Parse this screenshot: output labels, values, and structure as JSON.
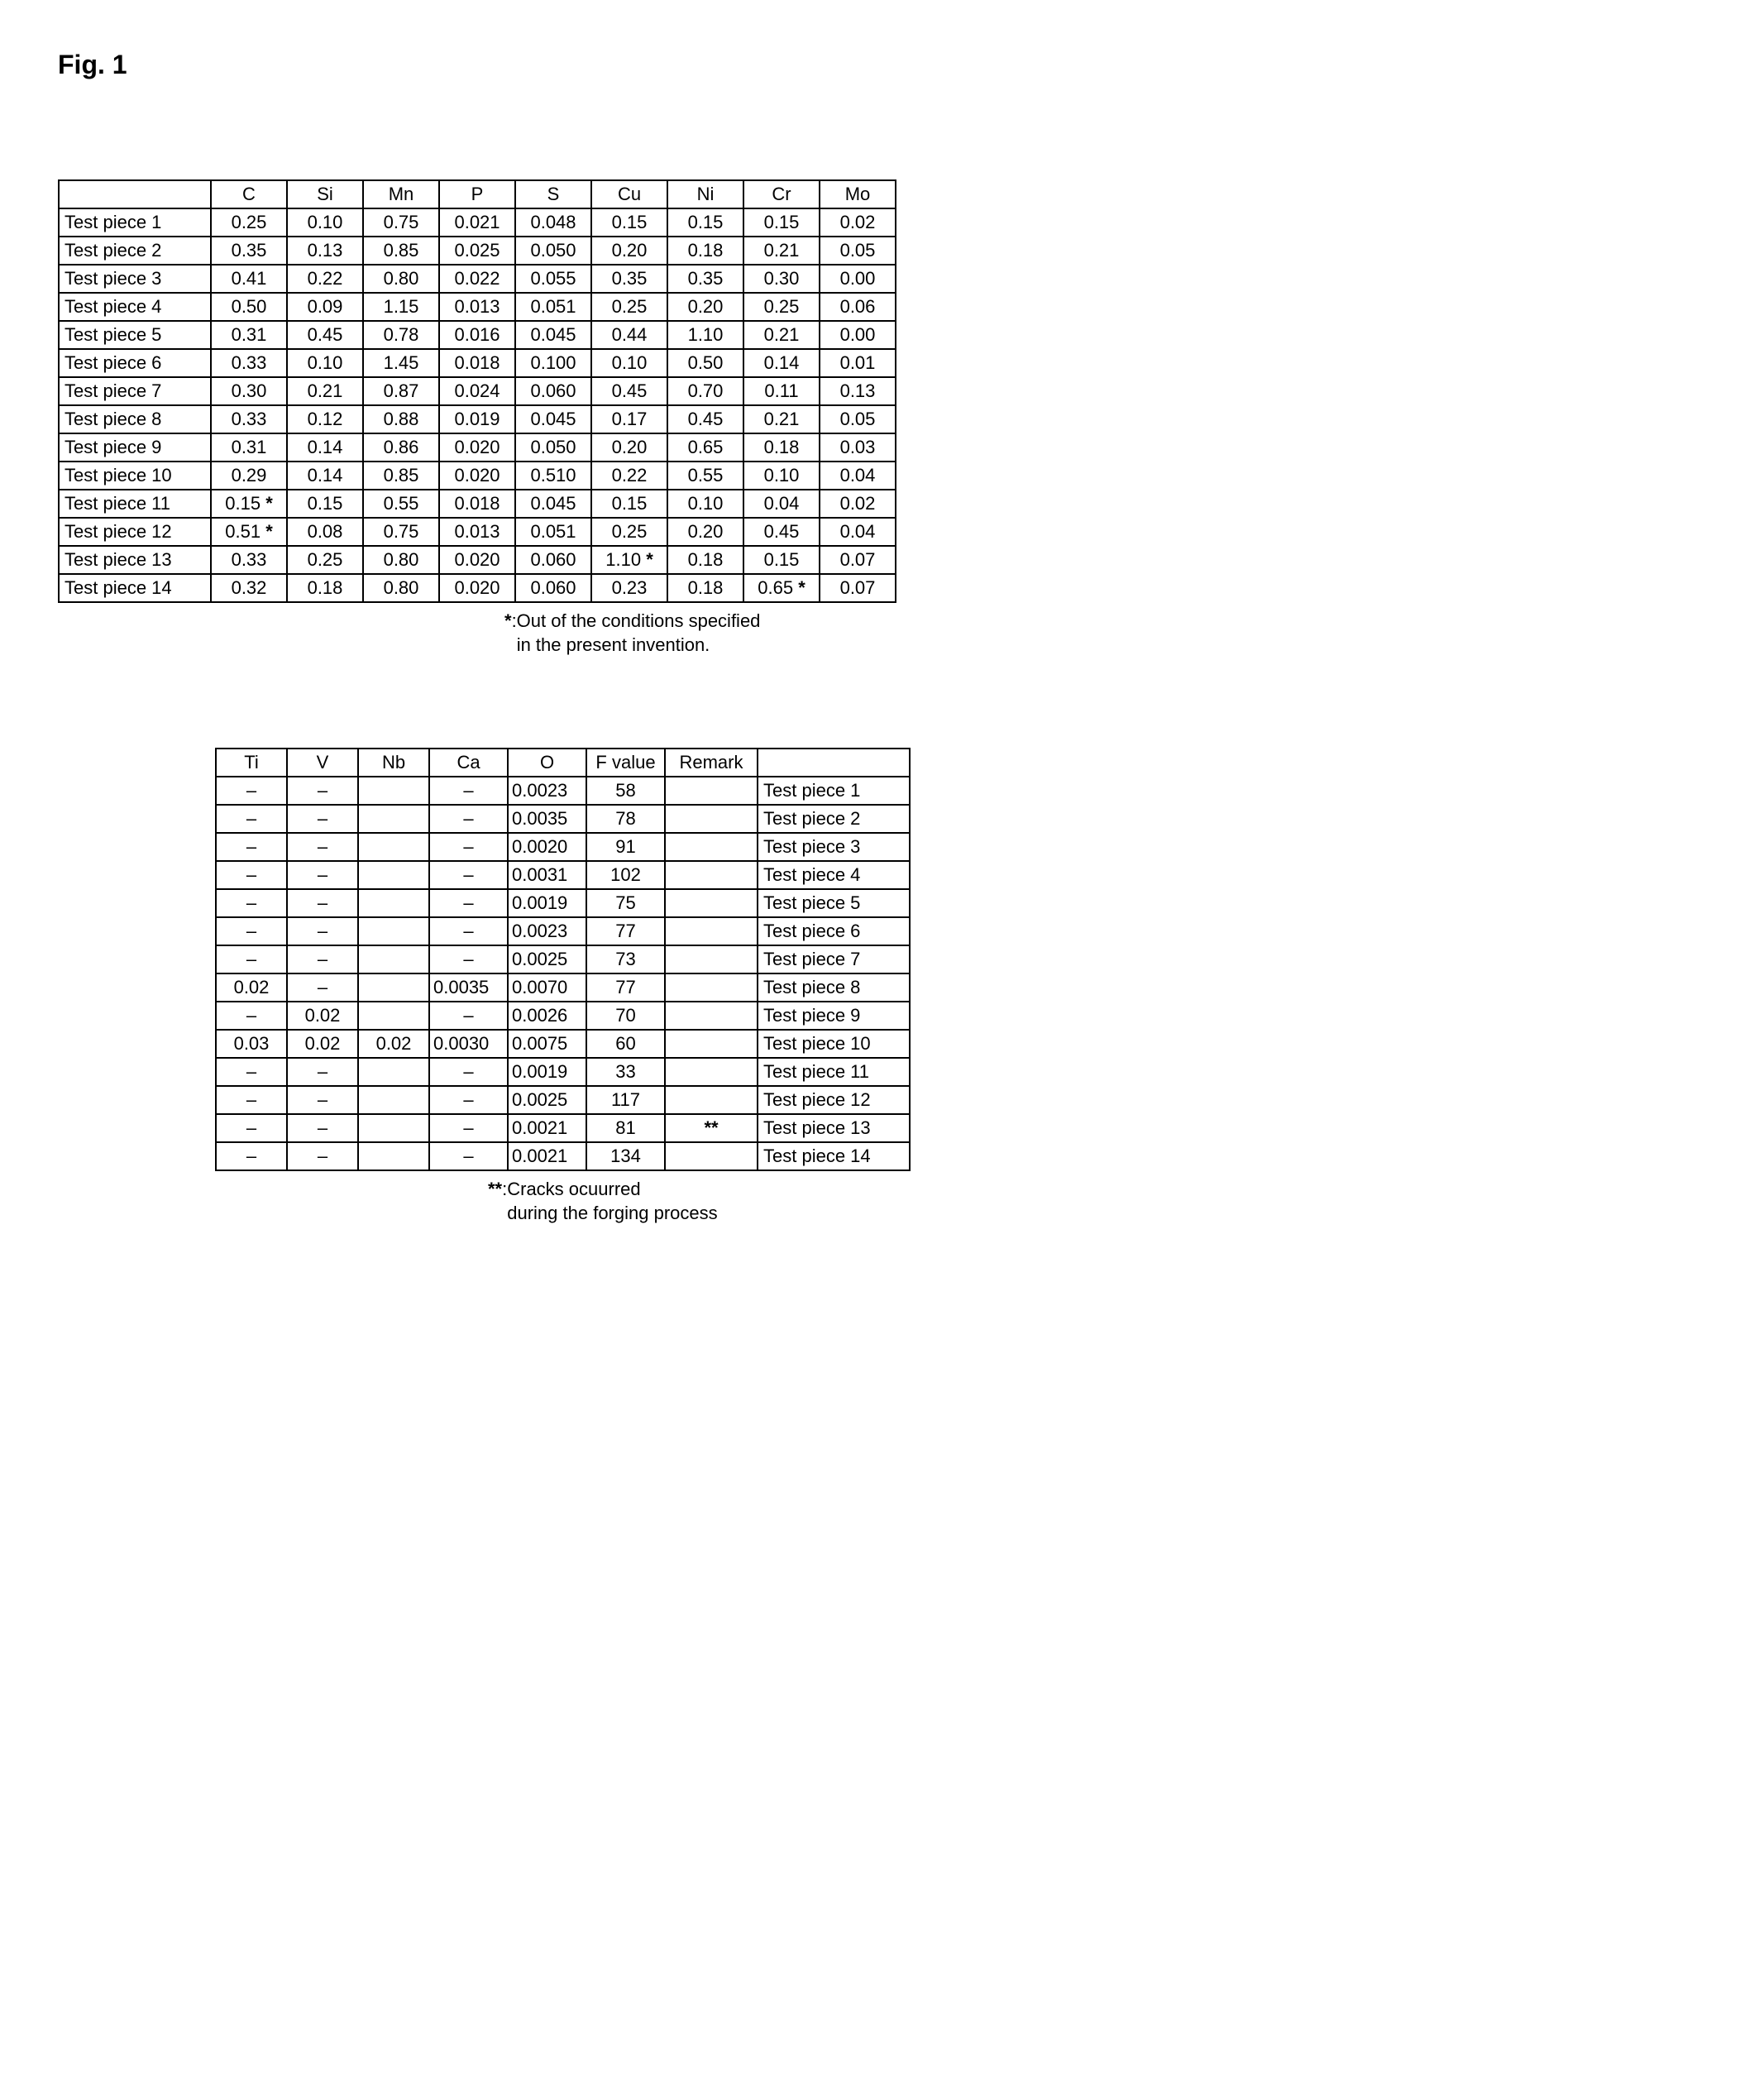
{
  "figure_label": "Fig. 1",
  "table1": {
    "headers": [
      "",
      "C",
      "Si",
      "Mn",
      "P",
      "S",
      "Cu",
      "Ni",
      "Cr",
      "Mo"
    ],
    "rows": [
      {
        "label": "Test piece 1",
        "cells": [
          "0.25",
          "0.10",
          "0.75",
          "0.021",
          "0.048",
          "0.15",
          "0.15",
          "0.15",
          "0.02"
        ],
        "marks": {}
      },
      {
        "label": "Test piece 2",
        "cells": [
          "0.35",
          "0.13",
          "0.85",
          "0.025",
          "0.050",
          "0.20",
          "0.18",
          "0.21",
          "0.05"
        ],
        "marks": {}
      },
      {
        "label": "Test piece 3",
        "cells": [
          "0.41",
          "0.22",
          "0.80",
          "0.022",
          "0.055",
          "0.35",
          "0.35",
          "0.30",
          "0.00"
        ],
        "marks": {}
      },
      {
        "label": "Test piece 4",
        "cells": [
          "0.50",
          "0.09",
          "1.15",
          "0.013",
          "0.051",
          "0.25",
          "0.20",
          "0.25",
          "0.06"
        ],
        "marks": {}
      },
      {
        "label": "Test piece 5",
        "cells": [
          "0.31",
          "0.45",
          "0.78",
          "0.016",
          "0.045",
          "0.44",
          "1.10",
          "0.21",
          "0.00"
        ],
        "marks": {}
      },
      {
        "label": "Test piece 6",
        "cells": [
          "0.33",
          "0.10",
          "1.45",
          "0.018",
          "0.100",
          "0.10",
          "0.50",
          "0.14",
          "0.01"
        ],
        "marks": {}
      },
      {
        "label": "Test piece 7",
        "cells": [
          "0.30",
          "0.21",
          "0.87",
          "0.024",
          "0.060",
          "0.45",
          "0.70",
          "0.11",
          "0.13"
        ],
        "marks": {}
      },
      {
        "label": "Test piece 8",
        "cells": [
          "0.33",
          "0.12",
          "0.88",
          "0.019",
          "0.045",
          "0.17",
          "0.45",
          "0.21",
          "0.05"
        ],
        "marks": {}
      },
      {
        "label": "Test piece 9",
        "cells": [
          "0.31",
          "0.14",
          "0.86",
          "0.020",
          "0.050",
          "0.20",
          "0.65",
          "0.18",
          "0.03"
        ],
        "marks": {}
      },
      {
        "label": "Test piece 10",
        "cells": [
          "0.29",
          "0.14",
          "0.85",
          "0.020",
          "0.510",
          "0.22",
          "0.55",
          "0.10",
          "0.04"
        ],
        "marks": {}
      },
      {
        "label": "Test piece 11",
        "cells": [
          "0.15",
          "0.15",
          "0.55",
          "0.018",
          "0.045",
          "0.15",
          "0.10",
          "0.04",
          "0.02"
        ],
        "marks": {
          "0": "*"
        }
      },
      {
        "label": "Test piece 12",
        "cells": [
          "0.51",
          "0.08",
          "0.75",
          "0.013",
          "0.051",
          "0.25",
          "0.20",
          "0.45",
          "0.04"
        ],
        "marks": {
          "0": "*"
        }
      },
      {
        "label": "Test piece 13",
        "cells": [
          "0.33",
          "0.25",
          "0.80",
          "0.020",
          "0.060",
          "1.10",
          "0.18",
          "0.15",
          "0.07"
        ],
        "marks": {
          "5": "*"
        }
      },
      {
        "label": "Test piece 14",
        "cells": [
          "0.32",
          "0.18",
          "0.80",
          "0.020",
          "0.060",
          "0.23",
          "0.18",
          "0.65",
          "0.07"
        ],
        "marks": {
          "7": "*"
        }
      }
    ],
    "footnote_symbol": "*",
    "footnote_text1": ":Out of the conditions specified",
    "footnote_text2": "in the present invention."
  },
  "table2": {
    "headers": [
      "Ti",
      "V",
      "Nb",
      "Ca",
      "O",
      "F value",
      "Remark",
      ""
    ],
    "rows": [
      {
        "cells": [
          "–",
          "–",
          "",
          "–",
          "0.0023",
          "58",
          ""
        ],
        "piece": "Test piece 1"
      },
      {
        "cells": [
          "–",
          "–",
          "",
          "–",
          "0.0035",
          "78",
          ""
        ],
        "piece": "Test piece 2"
      },
      {
        "cells": [
          "–",
          "–",
          "",
          "–",
          "0.0020",
          "91",
          ""
        ],
        "piece": "Test piece 3"
      },
      {
        "cells": [
          "–",
          "–",
          "",
          "–",
          "0.0031",
          "102",
          ""
        ],
        "piece": "Test piece 4"
      },
      {
        "cells": [
          "–",
          "–",
          "",
          "–",
          "0.0019",
          "75",
          ""
        ],
        "piece": "Test piece 5"
      },
      {
        "cells": [
          "–",
          "–",
          "",
          "–",
          "0.0023",
          "77",
          ""
        ],
        "piece": "Test piece 6"
      },
      {
        "cells": [
          "–",
          "–",
          "",
          "–",
          "0.0025",
          "73",
          ""
        ],
        "piece": "Test piece 7"
      },
      {
        "cells": [
          "0.02",
          "–",
          "",
          "0.0035",
          "0.0070",
          "77",
          ""
        ],
        "piece": "Test piece 8"
      },
      {
        "cells": [
          "–",
          "0.02",
          "",
          "–",
          "0.0026",
          "70",
          ""
        ],
        "piece": "Test piece 9"
      },
      {
        "cells": [
          "0.03",
          "0.02",
          "0.02",
          "0.0030",
          "0.0075",
          "60",
          ""
        ],
        "piece": "Test piece 10"
      },
      {
        "cells": [
          "–",
          "–",
          "",
          "–",
          "0.0019",
          "33",
          ""
        ],
        "piece": "Test piece 11"
      },
      {
        "cells": [
          "–",
          "–",
          "",
          "–",
          "0.0025",
          "117",
          ""
        ],
        "piece": "Test piece 12"
      },
      {
        "cells": [
          "–",
          "–",
          "",
          "–",
          "0.0021",
          "81",
          "**"
        ],
        "piece": "Test piece 13"
      },
      {
        "cells": [
          "–",
          "–",
          "",
          "–",
          "0.0021",
          "134",
          ""
        ],
        "piece": "Test piece 14"
      }
    ],
    "footnote_symbol": "**",
    "footnote_text1": ":Cracks ocuurred",
    "footnote_text2": "during the forging process"
  }
}
